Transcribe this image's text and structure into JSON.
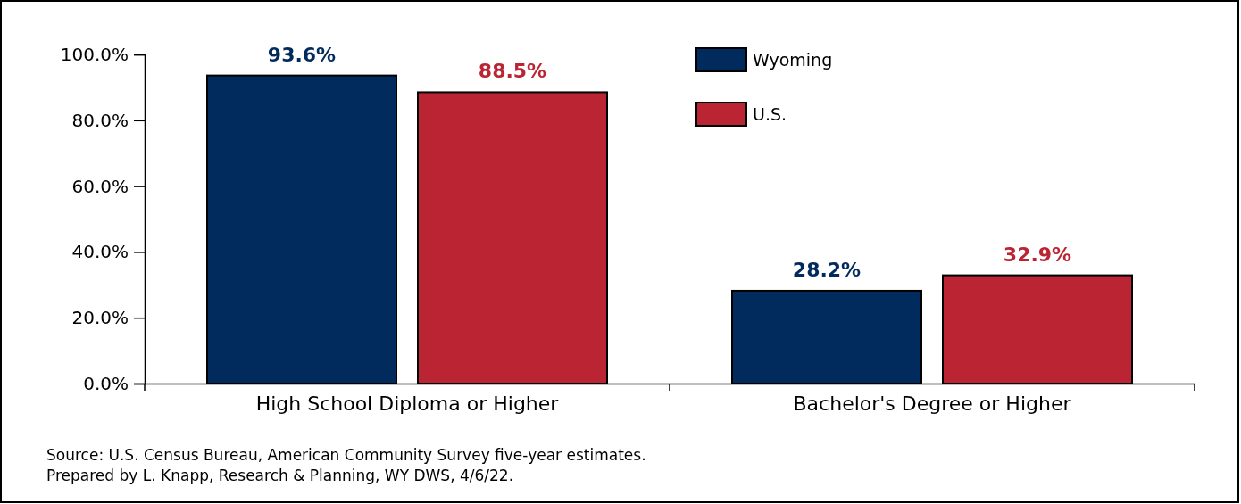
{
  "chart_data": {
    "type": "bar",
    "categories": [
      "High School Diploma or Higher",
      "Bachelor's Degree or Higher"
    ],
    "series": [
      {
        "name": "Wyoming",
        "color": "#002b5c",
        "values": [
          93.6,
          28.2
        ],
        "value_labels": [
          "93.6%",
          "28.2%"
        ]
      },
      {
        "name": "U.S.",
        "color": "#bb2533",
        "values": [
          88.5,
          32.9
        ],
        "value_labels": [
          "88.5%",
          "32.9%"
        ]
      }
    ],
    "ylim": [
      0,
      100
    ],
    "yticks": [
      {
        "value": 0,
        "label": "0.0%"
      },
      {
        "value": 20,
        "label": "20.0%"
      },
      {
        "value": 40,
        "label": "40.0%"
      },
      {
        "value": 60,
        "label": "60.0%"
      },
      {
        "value": 80,
        "label": "80.0%"
      },
      {
        "value": 100,
        "label": "100.0%"
      }
    ],
    "grid": false,
    "legend": "top",
    "annotations": [
      "Source: U.S. Census Bureau, American Community Survey five-year estimates.",
      "Prepared by L. Knapp, Research & Planning, WY DWS, 4/6/22."
    ]
  }
}
